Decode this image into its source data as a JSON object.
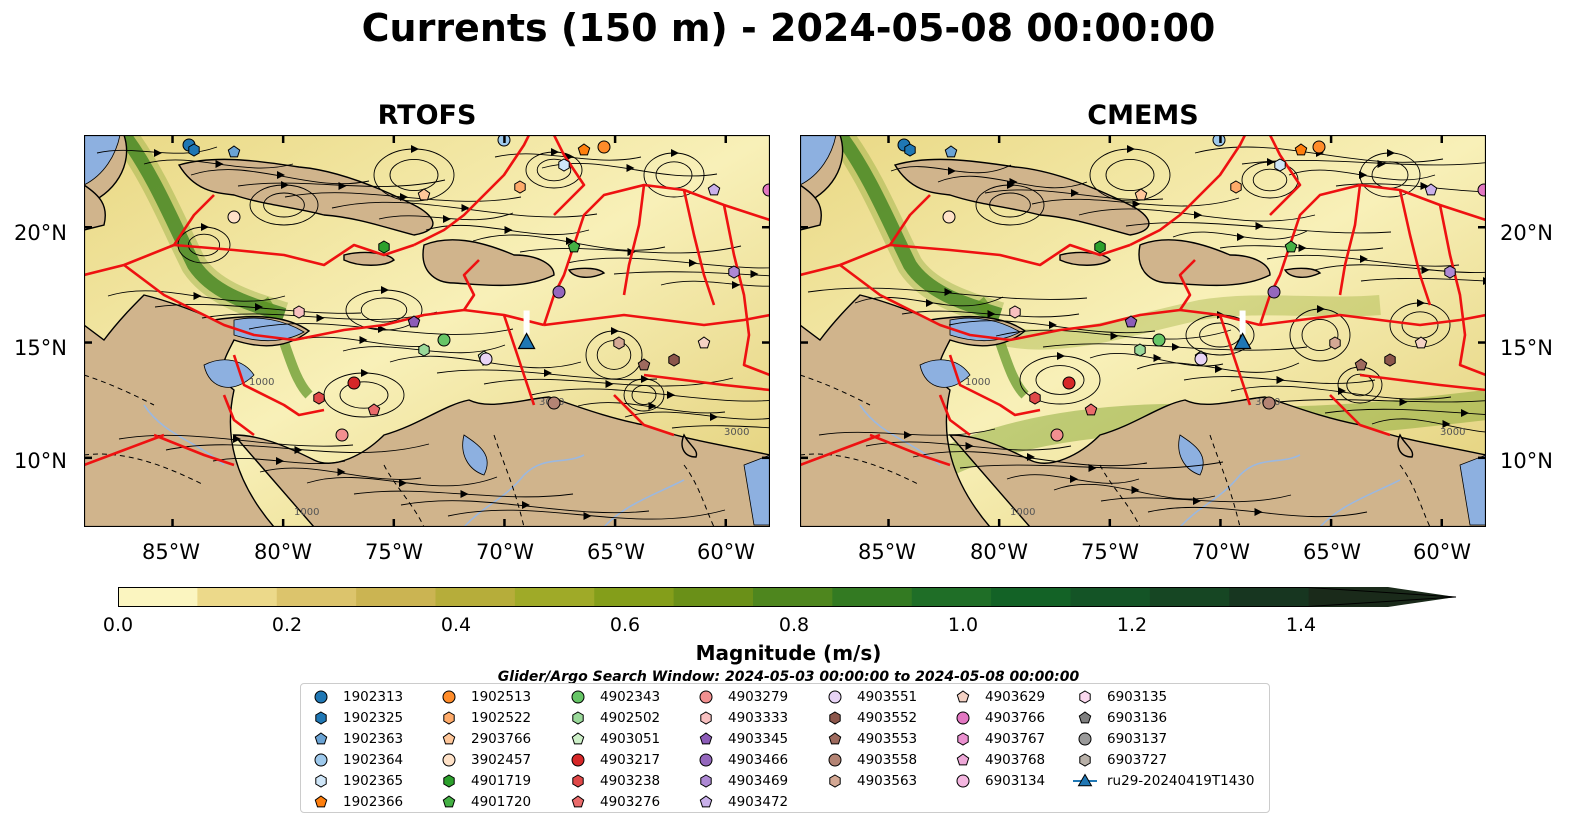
{
  "figure": {
    "title": "Currents (150 m) - 2024-05-08 00:00:00",
    "panels": [
      {
        "title": "RTOFS"
      },
      {
        "title": "CMEMS"
      }
    ],
    "x_ticks": [
      "85°W",
      "80°W",
      "75°W",
      "70°W",
      "65°W",
      "60°W"
    ],
    "y_ticks": [
      "20°N",
      "15°N",
      "10°N"
    ],
    "map_extent": {
      "lon": [
        -89,
        -58
      ],
      "lat": [
        7,
        24
      ]
    },
    "contour_labels": [
      "1000",
      "3000"
    ],
    "colors": {
      "ocean_fill_low": "#f8f0b8",
      "ocean_fill_high": "#1c2a14",
      "land": "#d0b48c",
      "shelf_water": "#8db0e0",
      "eez_lines": "#ee1111",
      "streamlines": "#000000"
    }
  },
  "colorbar": {
    "label": "Magnitude (m/s)",
    "ticks": [
      "0.0",
      "0.2",
      "0.4",
      "0.6",
      "0.8",
      "1.0",
      "1.2",
      "1.4"
    ],
    "range": [
      0,
      1.6
    ],
    "extend": "max",
    "bins": [
      "#fbf5c0",
      "#ecd98a",
      "#dcc46c",
      "#cbb452",
      "#b6ad3a",
      "#9faa28",
      "#849e1a",
      "#6a9018",
      "#4e861e",
      "#337a22",
      "#1f6e27",
      "#136226",
      "#145426",
      "#164623",
      "#173620",
      "#1a2a1a"
    ]
  },
  "search_window": "Glider/Argo Search Window: 2024-05-03 00:00:00 to 2024-05-08 00:00:00",
  "legend": {
    "columns": [
      [
        {
          "label": "1902313",
          "marker": "circle",
          "color": "#1f77b4"
        },
        {
          "label": "1902325",
          "marker": "hexagon",
          "color": "#1f77b4"
        },
        {
          "label": "1902363",
          "marker": "pentagon",
          "color": "#6aa3d4"
        },
        {
          "label": "1902364",
          "marker": "circle",
          "color": "#9ec9ec"
        },
        {
          "label": "1902365",
          "marker": "hexagon",
          "color": "#cfe6f8"
        },
        {
          "label": "1902366",
          "marker": "pentagon",
          "color": "#ff7f0e"
        }
      ],
      [
        {
          "label": "1902513",
          "marker": "circle",
          "color": "#ff8c2a"
        },
        {
          "label": "1902522",
          "marker": "hexagon",
          "color": "#ffab6a"
        },
        {
          "label": "2903766",
          "marker": "pentagon",
          "color": "#ffc79a"
        },
        {
          "label": "3902457",
          "marker": "circle",
          "color": "#ffe2c8"
        },
        {
          "label": "4901719",
          "marker": "hexagon",
          "color": "#2ca02c"
        },
        {
          "label": "4901720",
          "marker": "pentagon",
          "color": "#44b044"
        }
      ],
      [
        {
          "label": "4902343",
          "marker": "circle",
          "color": "#66c566"
        },
        {
          "label": "4902502",
          "marker": "hexagon",
          "color": "#9ad99a"
        },
        {
          "label": "4903051",
          "marker": "pentagon",
          "color": "#cdf0c8"
        },
        {
          "label": "4903217",
          "marker": "circle",
          "color": "#d62728"
        },
        {
          "label": "4903238",
          "marker": "hexagon",
          "color": "#e04848"
        },
        {
          "label": "4903276",
          "marker": "pentagon",
          "color": "#ea6b6b"
        }
      ],
      [
        {
          "label": "4903279",
          "marker": "circle",
          "color": "#f29090"
        },
        {
          "label": "4903333",
          "marker": "hexagon",
          "color": "#f8c0c0"
        },
        {
          "label": "4903345",
          "marker": "pentagon",
          "color": "#8c5cb8"
        },
        {
          "label": "4903466",
          "marker": "circle",
          "color": "#9467bd"
        },
        {
          "label": "4903469",
          "marker": "hexagon",
          "color": "#ad88d4"
        },
        {
          "label": "4903472",
          "marker": "pentagon",
          "color": "#c9b0ea"
        }
      ],
      [
        {
          "label": "4903551",
          "marker": "circle",
          "color": "#e8d4f6"
        },
        {
          "label": "4903552",
          "marker": "hexagon",
          "color": "#8c564b"
        },
        {
          "label": "4903553",
          "marker": "pentagon",
          "color": "#9e6a5e"
        },
        {
          "label": "4903558",
          "marker": "circle",
          "color": "#b48474"
        },
        {
          "label": "4903563",
          "marker": "hexagon",
          "color": "#d4a894"
        }
      ],
      [
        {
          "label": "4903629",
          "marker": "pentagon",
          "color": "#f4d2c4"
        },
        {
          "label": "4903766",
          "marker": "circle",
          "color": "#e377c2"
        },
        {
          "label": "4903767",
          "marker": "hexagon",
          "color": "#ea90cf"
        },
        {
          "label": "4903768",
          "marker": "pentagon",
          "color": "#eea8d8"
        },
        {
          "label": "6903134",
          "marker": "circle",
          "color": "#f4b6e0"
        }
      ],
      [
        {
          "label": "6903135",
          "marker": "hexagon",
          "color": "#fad8ee"
        },
        {
          "label": "6903136",
          "marker": "pentagon",
          "color": "#7f7f7f"
        },
        {
          "label": "6903137",
          "marker": "circle",
          "color": "#9a9a9a"
        },
        {
          "label": "6903727",
          "marker": "hexagon",
          "color": "#b8b0a8"
        },
        {
          "label": "ru29-20240419T1430",
          "marker": "triangle-line",
          "color": "#1f77b4"
        }
      ]
    ]
  },
  "glider": {
    "name": "ru29-20240419T1430",
    "lon": -69.0,
    "lat": 15.0
  }
}
